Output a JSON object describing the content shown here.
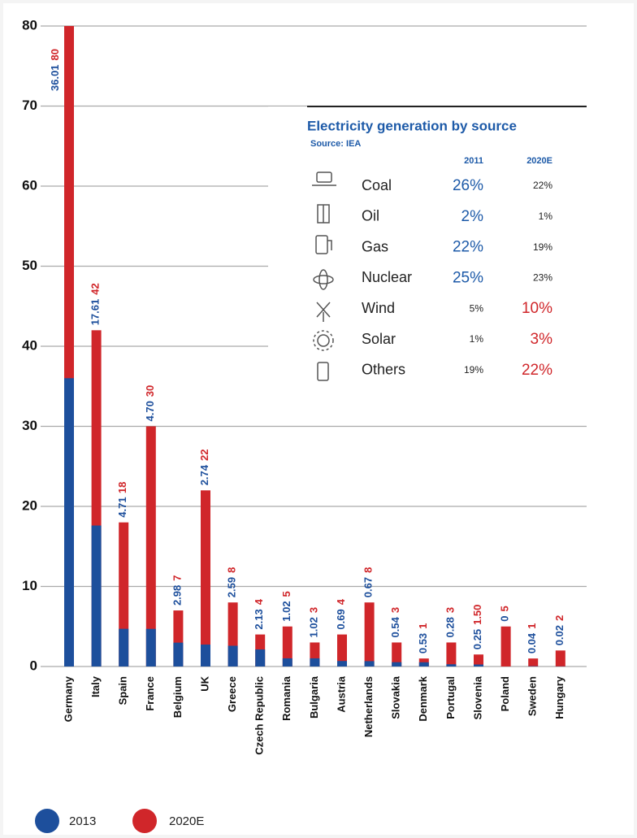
{
  "chart_data": {
    "type": "bar",
    "categories": [
      "Germany",
      "Italy",
      "Spain",
      "France",
      "Belgium",
      "UK",
      "Greece",
      "Czech Republic",
      "Romania",
      "Bulgaria",
      "Austria",
      "Netherlands",
      "Slovakia",
      "Denmark",
      "Portugal",
      "Slovenia",
      "Poland",
      "Sweden",
      "Hungary"
    ],
    "series": [
      {
        "name": "2020E",
        "color": "#d0262a",
        "values": [
          80,
          42,
          18,
          30,
          7,
          22,
          8,
          4,
          5,
          3,
          4,
          8,
          3,
          1,
          3,
          1.5,
          5,
          1,
          2
        ],
        "value_labels": [
          "80",
          "42",
          "18",
          "30",
          "7",
          "22",
          "8",
          "4",
          "5",
          "3",
          "4",
          "8",
          "3",
          "1",
          "3",
          "1.50",
          "5",
          "1",
          "2"
        ]
      },
      {
        "name": "2013",
        "color": "#1d4f9c",
        "values": [
          36.01,
          17.61,
          4.71,
          4.7,
          2.98,
          2.74,
          2.59,
          2.13,
          1.02,
          1.02,
          0.69,
          0.67,
          0.54,
          0.53,
          0.28,
          0.25,
          0,
          0.04,
          0.02
        ],
        "value_labels": [
          "36.01",
          "17.61",
          "4.71",
          "4.70",
          "2.98",
          "2.74",
          "2.59",
          "2.13",
          "1.02",
          "1.02",
          "0.69",
          "0.67",
          "0.54",
          "0.53",
          "0.28",
          "0.25",
          "0",
          "0.04",
          "0.02"
        ]
      }
    ],
    "ylim": [
      0,
      80
    ],
    "yticks": [
      0,
      10,
      20,
      30,
      40,
      50,
      60,
      70,
      80
    ],
    "grid": true,
    "legend": "bottom"
  },
  "inset": {
    "title": "Electricity generation by source",
    "source": "Source: IEA",
    "columns": [
      "2011",
      "2020E"
    ],
    "rows": [
      {
        "label": "Coal",
        "values": [
          "26%",
          "22%"
        ],
        "emphasis": 0
      },
      {
        "label": "Oil",
        "values": [
          "2%",
          "1%"
        ],
        "emphasis": 0
      },
      {
        "label": "Gas",
        "values": [
          "22%",
          "19%"
        ],
        "emphasis": 0
      },
      {
        "label": "Nuclear",
        "values": [
          "25%",
          "23%"
        ],
        "emphasis": 0
      },
      {
        "label": "Wind",
        "values": [
          "5%",
          "10%"
        ],
        "emphasis": 1
      },
      {
        "label": "Solar",
        "values": [
          "1%",
          "3%"
        ],
        "emphasis": 1
      },
      {
        "label": "Others",
        "values": [
          "19%",
          "22%"
        ],
        "emphasis": 1
      }
    ]
  }
}
